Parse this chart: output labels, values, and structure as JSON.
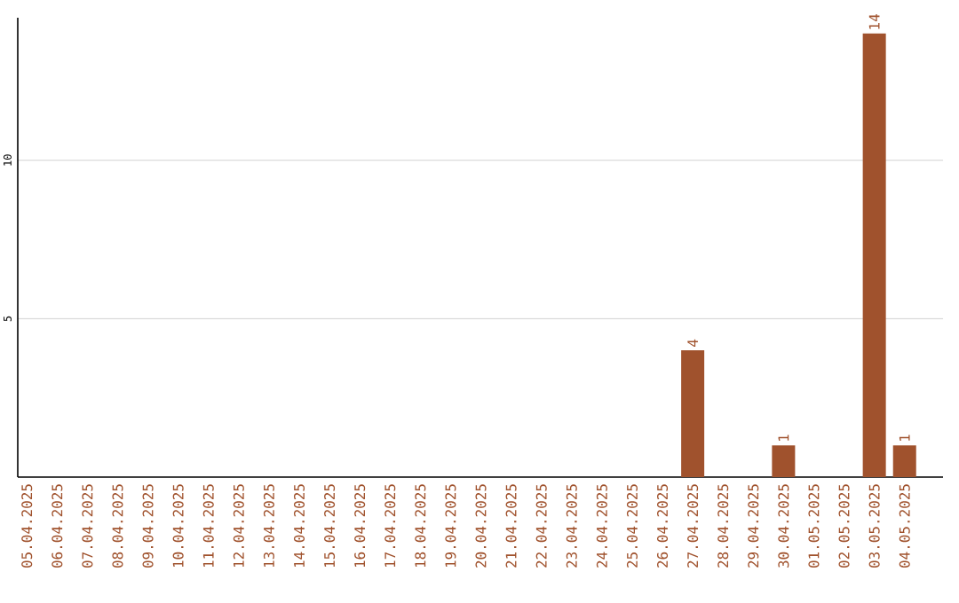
{
  "chart_data": {
    "type": "bar",
    "categories": [
      "05.04.2025",
      "06.04.2025",
      "07.04.2025",
      "08.04.2025",
      "09.04.2025",
      "10.04.2025",
      "11.04.2025",
      "12.04.2025",
      "13.04.2025",
      "14.04.2025",
      "15.04.2025",
      "16.04.2025",
      "17.04.2025",
      "18.04.2025",
      "19.04.2025",
      "20.04.2025",
      "21.04.2025",
      "22.04.2025",
      "23.04.2025",
      "24.04.2025",
      "25.04.2025",
      "26.04.2025",
      "27.04.2025",
      "28.04.2025",
      "29.04.2025",
      "30.04.2025",
      "01.05.2025",
      "02.05.2025",
      "03.05.2025",
      "04.05.2025"
    ],
    "values": [
      0,
      0,
      0,
      0,
      0,
      0,
      0,
      0,
      0,
      0,
      0,
      0,
      0,
      0,
      0,
      0,
      0,
      0,
      0,
      0,
      0,
      0,
      4,
      0,
      0,
      1,
      0,
      0,
      14,
      1
    ],
    "value_labels": [
      null,
      null,
      null,
      null,
      null,
      null,
      null,
      null,
      null,
      null,
      null,
      null,
      null,
      null,
      null,
      null,
      null,
      null,
      null,
      null,
      null,
      null,
      "4",
      null,
      null,
      "1",
      null,
      null,
      "14",
      "1"
    ],
    "color": "#a0522d",
    "ylim": [
      0,
      14.5
    ],
    "yticks": [
      5,
      10
    ],
    "grid": "y"
  }
}
